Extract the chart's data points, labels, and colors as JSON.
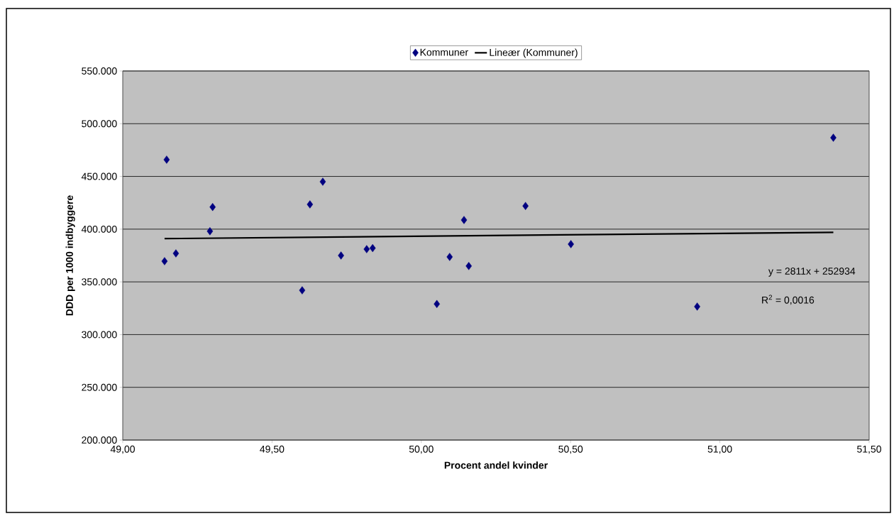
{
  "chart_data": {
    "type": "scatter",
    "xlabel": "Procent andel kvinder",
    "ylabel": "DDD per 1000 indbyggere",
    "x": [
      49.147,
      49.14,
      49.178,
      49.292,
      49.301,
      49.601,
      49.627,
      49.67,
      49.731,
      49.817,
      49.837,
      50.052,
      50.095,
      50.143,
      50.159,
      50.349,
      50.501,
      50.924,
      51.38
    ],
    "series": [
      {
        "name": "Kommuner",
        "color": "#000080",
        "marker": "diamond",
        "values": [
          465900,
          369600,
          377000,
          398000,
          421000,
          342000,
          423500,
          445000,
          375000,
          381000,
          382000,
          329000,
          373700,
          408700,
          365000,
          422000,
          385800,
          326600,
          486700
        ]
      },
      {
        "name": "Lineær (Kommuner)",
        "type": "line",
        "color": "#000000",
        "marker": "none",
        "line_style": "solid",
        "x": [
          49.14,
          51.38
        ],
        "values": [
          391000,
          397000
        ]
      }
    ],
    "xlim": [
      49.0,
      51.5
    ],
    "xticks": [
      {
        "value": 49.0,
        "label": "49,00"
      },
      {
        "value": 49.5,
        "label": "49,50"
      },
      {
        "value": 50.0,
        "label": "50,00"
      },
      {
        "value": 50.5,
        "label": "50,50"
      },
      {
        "value": 51.0,
        "label": "51,00"
      },
      {
        "value": 51.5,
        "label": "51,50"
      }
    ],
    "ylim": [
      200000,
      550000
    ],
    "yticks": [
      {
        "value": 200000,
        "label": "200.000"
      },
      {
        "value": 250000,
        "label": "250.000"
      },
      {
        "value": 300000,
        "label": "300.000"
      },
      {
        "value": 350000,
        "label": "350.000"
      },
      {
        "value": 400000,
        "label": "400.000"
      },
      {
        "value": 450000,
        "label": "450.000"
      },
      {
        "value": 500000,
        "label": "500.000"
      },
      {
        "value": 550000,
        "label": "550.000"
      }
    ],
    "annotations": [
      "y = 2811x + 252934",
      "R$^{2}$ = 0,0016"
    ],
    "grid": "y",
    "legend": "top"
  }
}
